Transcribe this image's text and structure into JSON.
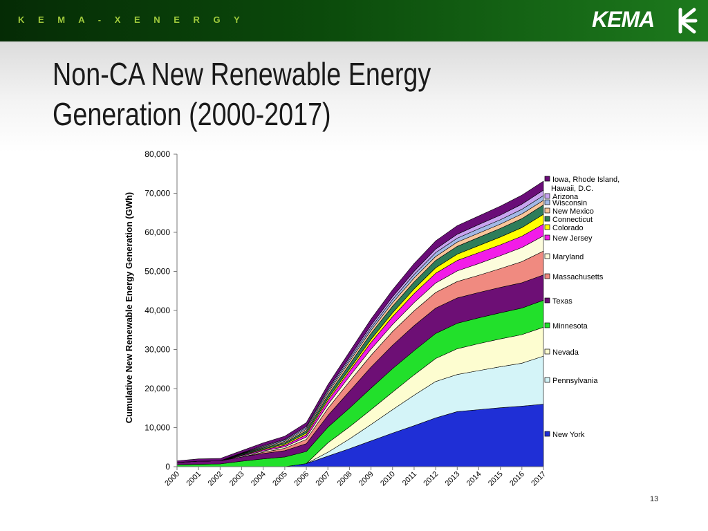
{
  "header": {
    "brand": "K E M A - X E N E R G Y",
    "logo_text": "KEMA",
    "title_line1": "Non-CA New Renewable Energy",
    "title_line2": "Generation (2000-2017)"
  },
  "page_number": "13",
  "chart_data": {
    "type": "area",
    "stacked": true,
    "ylabel": "Cumulative New Renewable Energy Generation (GWh)",
    "xlabel": "",
    "ylim": [
      0,
      80000
    ],
    "yticks": [
      0,
      10000,
      20000,
      30000,
      40000,
      50000,
      60000,
      70000,
      80000
    ],
    "ytick_labels": [
      "0",
      "10,000",
      "20,000",
      "30,000",
      "40,000",
      "50,000",
      "60,000",
      "70,000",
      "80,000"
    ],
    "grid": false,
    "legend_position": "right",
    "x": [
      "2000",
      "2001",
      "2002",
      "2003",
      "2004",
      "2005",
      "2006",
      "2007",
      "2008",
      "2009",
      "2010",
      "2011",
      "2012",
      "2013",
      "2014",
      "2015",
      "2016",
      "2017"
    ],
    "series": [
      {
        "name": "New York",
        "color": "#1f2fd6",
        "values": [
          0,
          0,
          0,
          0,
          0,
          0,
          800,
          2700,
          4600,
          6600,
          8600,
          10500,
          12500,
          14100,
          14600,
          15100,
          15500,
          16000
        ]
      },
      {
        "name": "Pennsylvania",
        "color": "#d4f4f8",
        "values": [
          0,
          0,
          0,
          0,
          0,
          0,
          0,
          1000,
          2500,
          4200,
          6000,
          7800,
          9300,
          9500,
          10000,
          10500,
          11000,
          12300
        ]
      },
      {
        "name": "Nevada",
        "color": "#fdfdd0",
        "values": [
          0,
          0,
          0,
          0,
          0,
          0,
          0,
          2400,
          3100,
          3800,
          4500,
          5200,
          5900,
          6600,
          6900,
          7100,
          7300,
          7400
        ]
      },
      {
        "name": "Minnesota",
        "color": "#22e02b",
        "values": [
          500,
          600,
          700,
          1400,
          2000,
          2500,
          3100,
          4000,
          4800,
          5500,
          6000,
          6200,
          6400,
          6500,
          6600,
          6700,
          6800,
          6900
        ]
      },
      {
        "name": "Texas",
        "color": "#6d0f75",
        "values": [
          600,
          800,
          800,
          1100,
          1400,
          1600,
          2000,
          3000,
          4300,
          5400,
          6000,
          6400,
          6500,
          6500,
          6500,
          6500,
          6500,
          6500
        ]
      },
      {
        "name": "Massachusetts",
        "color": "#f08a80",
        "values": [
          0,
          0,
          0,
          0,
          300,
          600,
          1100,
          1800,
          2500,
          3000,
          3500,
          3800,
          4000,
          4200,
          4400,
          4800,
          5400,
          6100
        ]
      },
      {
        "name": "Maryland",
        "color": "#fcfcdc",
        "values": [
          0,
          0,
          0,
          200,
          300,
          400,
          600,
          1000,
          1300,
          1600,
          1800,
          2100,
          2400,
          2700,
          3000,
          3300,
          3600,
          3900
        ]
      },
      {
        "name": "New Jersey",
        "color": "#f21ce8",
        "values": [
          0,
          0,
          0,
          200,
          300,
          400,
          600,
          1000,
          1300,
          1700,
          2000,
          2300,
          2500,
          2700,
          2800,
          2800,
          2900,
          3000
        ]
      },
      {
        "name": "Colorado",
        "color": "#ffff00",
        "values": [
          0,
          0,
          0,
          100,
          200,
          300,
          400,
          500,
          600,
          800,
          1000,
          1200,
          1400,
          1600,
          1800,
          2000,
          2200,
          2500
        ]
      },
      {
        "name": "Connecticut",
        "color": "#2e7d5a",
        "values": [
          0,
          0,
          0,
          200,
          300,
          400,
          600,
          900,
          1200,
          1500,
          1700,
          1800,
          1900,
          2000,
          2100,
          2200,
          2300,
          2400
        ]
      },
      {
        "name": "New Mexico",
        "color": "#f9c59a",
        "values": [
          0,
          0,
          0,
          100,
          200,
          300,
          400,
          600,
          700,
          800,
          900,
          1000,
          1000,
          1100,
          1100,
          1100,
          1200,
          1200
        ]
      },
      {
        "name": "Wisconsin",
        "color": "#a2b8e6",
        "values": [
          0,
          0,
          0,
          100,
          200,
          300,
          400,
          500,
          600,
          700,
          800,
          900,
          1000,
          1000,
          1100,
          1100,
          1200,
          1200
        ]
      },
      {
        "name": "Arizona",
        "color": "#c8a3f0",
        "values": [
          0,
          0,
          0,
          100,
          200,
          200,
          300,
          400,
          500,
          600,
          700,
          800,
          900,
          1000,
          1100,
          1200,
          1300,
          1400
        ]
      },
      {
        "name": "Iowa, Rhode Island, Hawaii, D.C.",
        "color": "#6a0d78",
        "values": [
          400,
          600,
          600,
          600,
          700,
          800,
          1000,
          1200,
          1400,
          1600,
          1800,
          2000,
          2100,
          2200,
          2200,
          2300,
          2300,
          2300
        ]
      }
    ]
  }
}
